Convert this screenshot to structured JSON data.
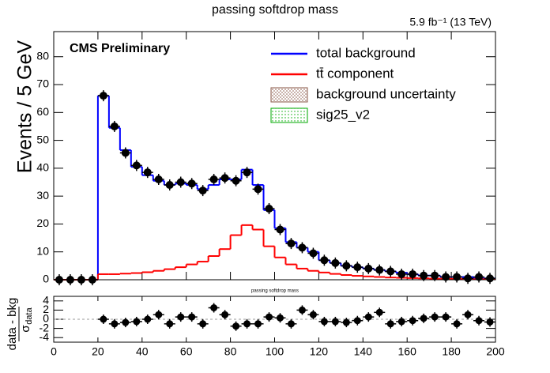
{
  "chart_data": [
    {
      "type": "histogram",
      "title": "passing softdrop mass",
      "lumi": "5.9 fb⁻¹ (13 TeV)",
      "label": "CMS Preliminary",
      "ylabel": "Events / 5 GeV",
      "bins": [
        0,
        5,
        10,
        15,
        20,
        25,
        30,
        35,
        40,
        45,
        50,
        55,
        60,
        65,
        70,
        75,
        80,
        85,
        90,
        95,
        100,
        105,
        110,
        115,
        120,
        125,
        130,
        135,
        140,
        145,
        150,
        155,
        160,
        165,
        170,
        175,
        180,
        185,
        190,
        195,
        200
      ],
      "series": [
        {
          "name": "total background",
          "color": "#0000ff",
          "style": "step",
          "values": [
            0,
            0,
            0,
            0,
            66,
            54.5,
            46.5,
            40.5,
            37.5,
            35.5,
            34,
            34.5,
            34,
            32.5,
            34,
            36,
            36,
            39.5,
            34,
            25,
            18.5,
            13.5,
            11.5,
            10,
            7,
            6,
            5,
            4.5,
            4,
            3.5,
            3,
            2.5,
            2,
            1.5,
            1.5,
            1,
            1,
            1,
            0.5,
            0.5
          ]
        },
        {
          "name": "tt̄ component",
          "color": "#ff0000",
          "style": "step",
          "values": [
            0,
            0,
            0,
            0,
            2,
            2,
            2.2,
            2.4,
            2.7,
            3.2,
            3.8,
            4.5,
            5.5,
            6.5,
            8.5,
            11,
            16,
            19.6,
            18,
            12,
            8,
            5.5,
            4,
            3.2,
            2.6,
            2.1,
            1.7,
            1.4,
            1.2,
            1,
            0.8,
            0.7,
            0.6,
            0.5,
            0.4,
            0.35,
            0.3,
            0.25,
            0.2,
            0.2
          ]
        },
        {
          "color": "#000000",
          "style": "points",
          "values": [
            0,
            0,
            0,
            0,
            66,
            55,
            45.5,
            41,
            38.5,
            36,
            34,
            35,
            34.5,
            32,
            36,
            36.5,
            35.5,
            38.5,
            32.5,
            25.5,
            18,
            13,
            11.5,
            9.5,
            7,
            6,
            5,
            4.5,
            4,
            3.5,
            3,
            2,
            2,
            1.5,
            1.5,
            1,
            1,
            0.5,
            1,
            0.5
          ]
        }
      ],
      "legend_only": [
        {
          "name": "background uncertainty",
          "color": "#8b5a4a",
          "fill": "hatch"
        },
        {
          "name": "sig25_v2",
          "color": "#00aa00",
          "fill": "dots"
        }
      ],
      "xlim": [
        0,
        200
      ],
      "xticks": [
        0,
        20,
        40,
        60,
        80,
        100,
        120,
        140,
        160,
        180,
        200
      ],
      "ylim": [
        0,
        89
      ],
      "yticks": [
        0,
        10,
        20,
        30,
        40,
        50,
        60,
        70,
        80
      ]
    },
    {
      "type": "scatter",
      "title": "passing softdrop mass",
      "ylabel": {
        "numerator": "data - bkg",
        "denominator": "σ",
        "subscript": "data"
      },
      "x": [
        22.5,
        27.5,
        32.5,
        37.5,
        42.5,
        47.5,
        52.5,
        57.5,
        62.5,
        67.5,
        72.5,
        77.5,
        82.5,
        87.5,
        92.5,
        97.5,
        102.5,
        107.5,
        112.5,
        117.5,
        122.5,
        127.5,
        132.5,
        137.5,
        142.5,
        147.5,
        152.5,
        157.5,
        162.5,
        167.5,
        172.5,
        177.5,
        182.5,
        187.5,
        192.5,
        197.5
      ],
      "values": [
        0,
        -1,
        -0.7,
        -0.5,
        0,
        1,
        -1,
        0.5,
        0.5,
        -1,
        2.5,
        1,
        -1.5,
        -1,
        -1,
        0.5,
        0.3,
        -1,
        2,
        1,
        -0.5,
        -0.5,
        -0.7,
        -0.3,
        0.5,
        1.5,
        -1,
        -0.5,
        -0.3,
        0.2,
        0.5,
        0.5,
        -1,
        1,
        -0.3,
        -0.6
      ],
      "color": "#000000",
      "xlim": [
        0,
        200
      ],
      "xticks": [
        0,
        20,
        40,
        60,
        80,
        100,
        120,
        140,
        160,
        180,
        200
      ],
      "ylim": [
        -5,
        5
      ],
      "yticks": [
        -4,
        -2,
        0,
        2,
        4
      ]
    }
  ]
}
